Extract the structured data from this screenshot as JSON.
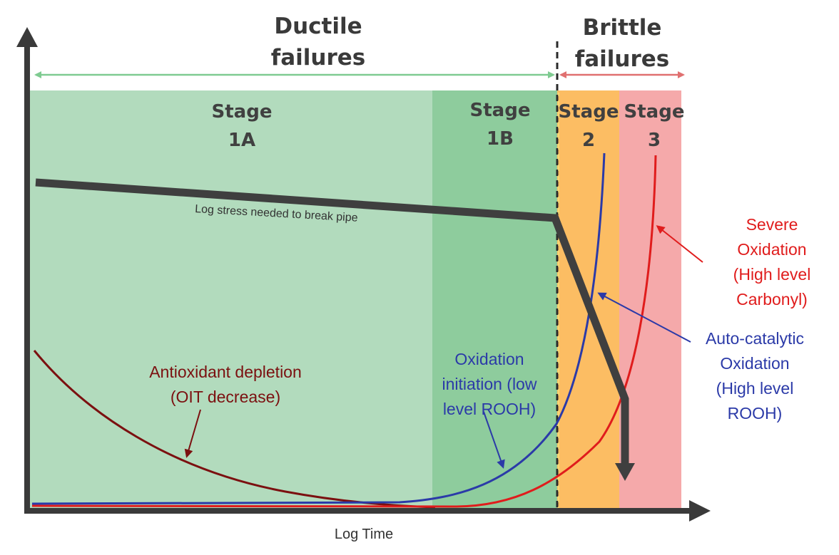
{
  "colors": {
    "stage_1a": "#b2dbbd",
    "stage_1b": "#8ecc9d",
    "stage_2": "#fcbd63",
    "stage_3": "#f5a9aa",
    "ductile_arrow": "#7fcb91",
    "brittle_arrow": "#e07070",
    "stress_curve": "#3f3f3f",
    "antioxidant_curve": "#7b1010",
    "rooh_curve": "#2b3aa8",
    "carbonyl_curve": "#e01c1c",
    "divider": "#2a2a2a"
  },
  "headers": {
    "ductile": [
      "Ductile",
      "failures"
    ],
    "brittle": [
      "Brittle",
      "failures"
    ]
  },
  "stages": [
    {
      "lines": [
        "Stage",
        "1A"
      ]
    },
    {
      "lines": [
        "Stage",
        "1B"
      ]
    },
    {
      "lines": [
        "Stage",
        "2"
      ]
    },
    {
      "lines": [
        "Stage",
        "3"
      ]
    }
  ],
  "labels": {
    "stress": "Log stress needed to break pipe",
    "x_axis": "Log Time",
    "antioxidant": [
      "Antioxidant depletion",
      "(OIT decrease)"
    ],
    "initiation": [
      "Oxidation",
      "initiation (low",
      "level ROOH)"
    ],
    "autocatalytic": [
      "Auto-catalytic",
      "Oxidation",
      "(High level",
      "ROOH)"
    ],
    "severe": [
      "Severe",
      "Oxidation",
      "(High level",
      "Carbonyl)"
    ]
  },
  "icons": {
    "arrowheads": "arrow-head-icon"
  }
}
